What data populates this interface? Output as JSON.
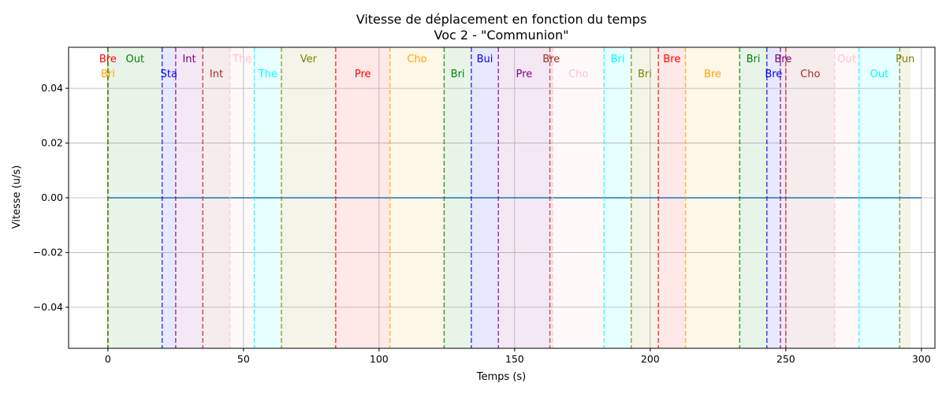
{
  "chart_data": {
    "type": "line",
    "title": "Vitesse de déplacement en fonction du temps",
    "subtitle": "Voc 2 - \"Communion\"",
    "xlabel": "Temps (s)",
    "ylabel": "Vitesse (u/s)",
    "xlim": [
      -14.5,
      305
    ],
    "ylim": [
      -0.055,
      0.055
    ],
    "xticks": [
      0,
      50,
      100,
      150,
      200,
      250,
      300
    ],
    "yticks": [
      0.04,
      0.02,
      0.0,
      -0.02,
      -0.04
    ],
    "xtick_labels": [
      "0",
      "50",
      "100",
      "150",
      "200",
      "250",
      "300"
    ],
    "ytick_labels": [
      "0.04",
      "0.02",
      "0.00",
      "−0.02",
      "−0.04"
    ],
    "grid": true,
    "series": [
      {
        "x": [
          0,
          300
        ],
        "y": [
          0,
          0
        ]
      }
    ],
    "segments": [
      {
        "label": "Bre",
        "start": 0,
        "end": 0,
        "color": "#ff0000",
        "row": 0
      },
      {
        "label": "Bri",
        "start": 0,
        "end": 0,
        "color": "#ffa500",
        "row": 1
      },
      {
        "label": "Out",
        "start": 0,
        "end": 20,
        "color": "#008000",
        "row": 0
      },
      {
        "label": "Sta",
        "start": 20,
        "end": 25,
        "color": "#0000ff",
        "row": 1
      },
      {
        "label": "Int",
        "start": 25,
        "end": 35,
        "color": "#800080",
        "row": 0
      },
      {
        "label": "Int",
        "start": 35,
        "end": 45,
        "color": "#a52a2a",
        "row": 1
      },
      {
        "label": "The",
        "start": 45,
        "end": 54,
        "color": "#ffc0cb",
        "row": 0
      },
      {
        "label": "The",
        "start": 54,
        "end": 64,
        "color": "#00ffff",
        "row": 1
      },
      {
        "label": "Ver",
        "start": 64,
        "end": 84,
        "color": "#808000",
        "row": 0
      },
      {
        "label": "Pre",
        "start": 84,
        "end": 104,
        "color": "#ff0000",
        "row": 1
      },
      {
        "label": "Cho",
        "start": 104,
        "end": 124,
        "color": "#ffa500",
        "row": 0
      },
      {
        "label": "Bri",
        "start": 124,
        "end": 134,
        "color": "#008000",
        "row": 1
      },
      {
        "label": "Bui",
        "start": 134,
        "end": 144,
        "color": "#0000ff",
        "row": 0
      },
      {
        "label": "Pre",
        "start": 144,
        "end": 163,
        "color": "#800080",
        "row": 1
      },
      {
        "label": "Bre",
        "start": 163,
        "end": 164,
        "color": "#a52a2a",
        "row": 0
      },
      {
        "label": "Cho",
        "start": 164,
        "end": 183,
        "color": "#ffc0cb",
        "row": 1
      },
      {
        "label": "Bri",
        "start": 183,
        "end": 193,
        "color": "#00ffff",
        "row": 0
      },
      {
        "label": "Bri",
        "start": 193,
        "end": 203,
        "color": "#808000",
        "row": 1
      },
      {
        "label": "Bre",
        "start": 203,
        "end": 213,
        "color": "#ff0000",
        "row": 0
      },
      {
        "label": "Bre",
        "start": 213,
        "end": 233,
        "color": "#ffa500",
        "row": 1
      },
      {
        "label": "Bri",
        "start": 233,
        "end": 243,
        "color": "#008000",
        "row": 0
      },
      {
        "label": "Bre",
        "start": 243,
        "end": 248,
        "color": "#0000ff",
        "row": 1
      },
      {
        "label": "Bre",
        "start": 248,
        "end": 250,
        "color": "#800080",
        "row": 0
      },
      {
        "label": "Cho",
        "start": 250,
        "end": 268,
        "color": "#a52a2a",
        "row": 1
      },
      {
        "label": "Out",
        "start": 268,
        "end": 277,
        "color": "#ffc0cb",
        "row": 0
      },
      {
        "label": "Out",
        "start": 277,
        "end": 292,
        "color": "#00ffff",
        "row": 1
      },
      {
        "label": "Pun",
        "start": 292,
        "end": 296,
        "color": "#808000",
        "row": 0
      }
    ]
  }
}
